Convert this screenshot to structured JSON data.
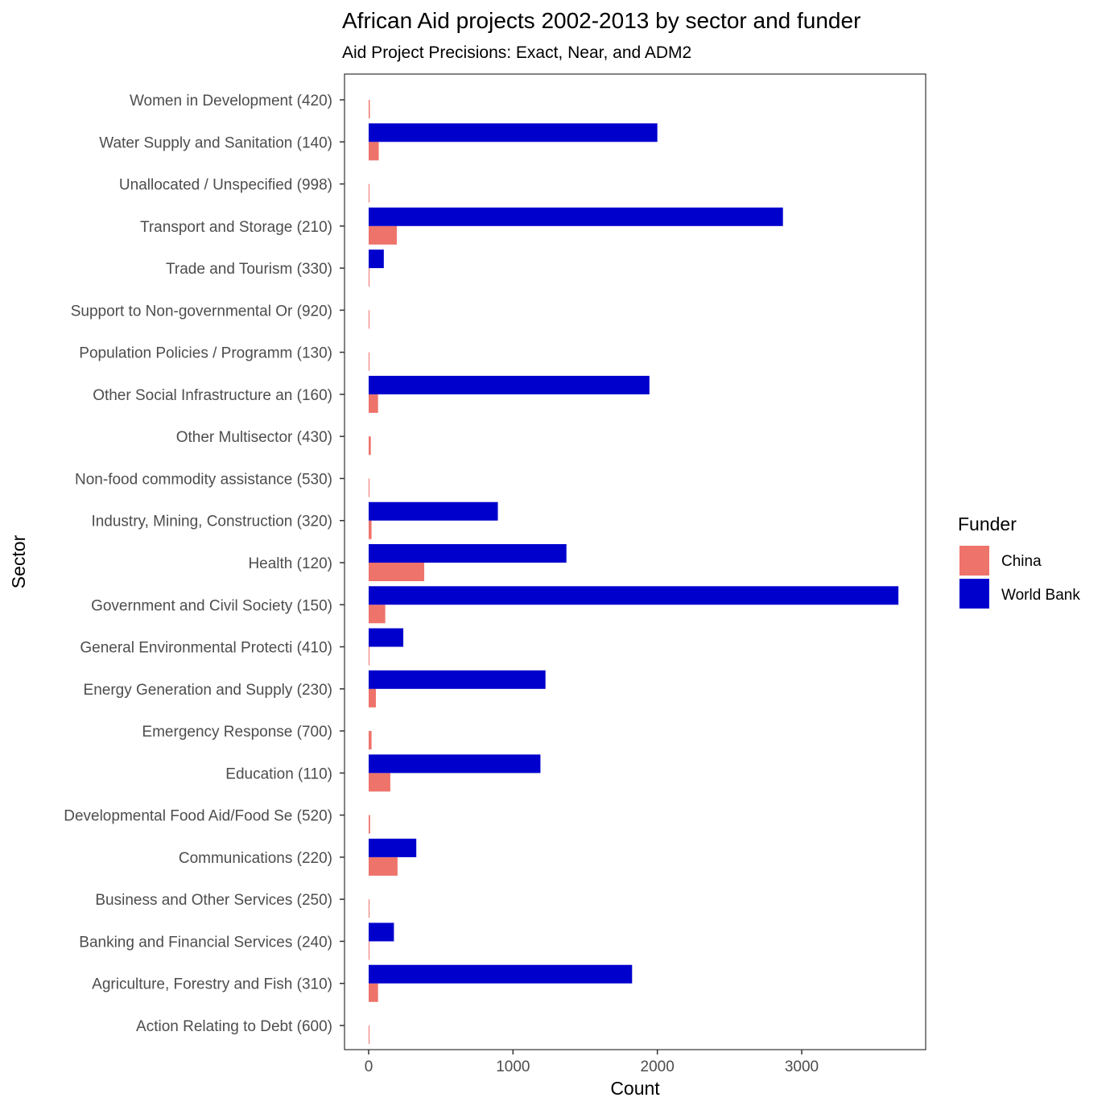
{
  "chart_data": {
    "type": "bar",
    "orientation": "horizontal",
    "title": "African Aid projects 2002-2013 by sector and funder",
    "subtitle": "Aid Project Precisions: Exact, Near, and ADM2",
    "xlabel": "Count",
    "ylabel": "Sector",
    "xlim": [
      -170,
      3860
    ],
    "xticks": [
      0,
      1000,
      2000,
      3000
    ],
    "xtick_labels": [
      "0",
      "1000",
      "2000",
      "3000"
    ],
    "grid": false,
    "legend": {
      "title": "Funder",
      "position": "right"
    },
    "categories": [
      "Women in Development (420)",
      "Water Supply and Sanitation (140)",
      "Unallocated / Unspecified (998)",
      "Transport and Storage (210)",
      "Trade and Tourism (330)",
      "Support to Non-governmental Or (920)",
      "Population Policies / Programm (130)",
      "Other Social Infrastructure an (160)",
      "Other Multisector (430)",
      "Non-food commodity assistance (530)",
      "Industry, Mining, Construction (320)",
      "Health (120)",
      "Government and Civil Society (150)",
      "General Environmental Protecti (410)",
      "Energy Generation and Supply (230)",
      "Emergency Response (700)",
      "Education (110)",
      "Developmental Food Aid/Food Se (520)",
      "Communications (220)",
      "Business and Other Services (250)",
      "Banking and Financial Services (240)",
      "Agriculture, Forestry and Fish (310)",
      "Action Relating to Debt (600)"
    ],
    "series": [
      {
        "name": "China",
        "color": "#ee736b",
        "values": [
          8,
          70,
          2,
          195,
          3,
          3,
          2,
          65,
          15,
          5,
          20,
          385,
          115,
          3,
          50,
          20,
          150,
          10,
          200,
          2,
          3,
          65,
          2
        ]
      },
      {
        "name": "World Bank",
        "color": "#0000cd",
        "values": [
          0,
          2000,
          0,
          2870,
          105,
          0,
          0,
          1945,
          0,
          0,
          895,
          1370,
          3670,
          240,
          1225,
          0,
          1190,
          0,
          330,
          0,
          175,
          1825,
          0
        ]
      }
    ]
  }
}
